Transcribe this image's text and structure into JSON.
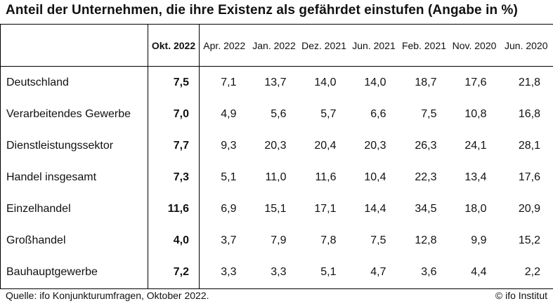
{
  "title": "Anteil der Unternehmen, die ihre Existenz als gefährdet einstufen (Angabe in %)",
  "columns": [
    "Okt. 2022",
    "Apr. 2022",
    "Jan. 2022",
    "Dez. 2021",
    "Jun. 2021",
    "Feb. 2021",
    "Nov. 2020",
    "Jun. 2020"
  ],
  "rows": [
    {
      "label": "Deutschland",
      "values": [
        "7,5",
        "7,1",
        "13,7",
        "14,0",
        "14,0",
        "18,7",
        "17,6",
        "21,8"
      ]
    },
    {
      "label": "Verarbeitendes Gewerbe",
      "values": [
        "7,0",
        "4,9",
        "5,6",
        "5,7",
        "6,6",
        "7,5",
        "10,8",
        "16,8"
      ]
    },
    {
      "label": "Dienstleistungssektor",
      "values": [
        "7,7",
        "9,3",
        "20,3",
        "20,4",
        "20,3",
        "26,3",
        "24,1",
        "28,1"
      ]
    },
    {
      "label": "Handel insgesamt",
      "values": [
        "7,3",
        "5,1",
        "11,0",
        "11,6",
        "10,4",
        "22,3",
        "13,4",
        "17,6"
      ]
    },
    {
      "label": "Einzelhandel",
      "values": [
        "11,6",
        "6,9",
        "15,1",
        "17,1",
        "14,4",
        "34,5",
        "18,0",
        "20,9"
      ]
    },
    {
      "label": "Großhandel",
      "values": [
        "4,0",
        "3,7",
        "7,9",
        "7,8",
        "7,5",
        "12,8",
        "9,9",
        "15,2"
      ]
    },
    {
      "label": "Bauhauptgewerbe",
      "values": [
        "7,2",
        "3,3",
        "3,3",
        "5,1",
        "4,7",
        "3,6",
        "4,4",
        "2,2"
      ]
    }
  ],
  "footer": {
    "source": "Quelle: ifo Konjunkturumfragen, Oktober 2022.",
    "copyright": "© ifo Institut"
  }
}
